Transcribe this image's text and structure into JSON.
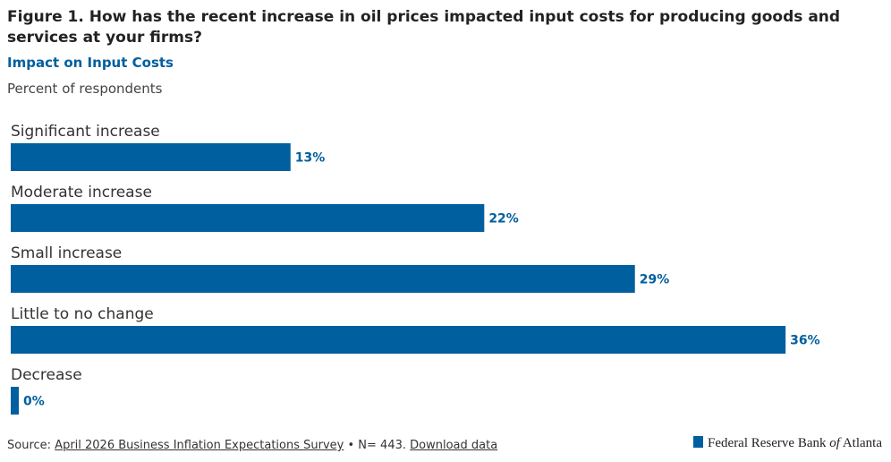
{
  "chart_data": {
    "type": "hbar",
    "title": "Figure 1. How has the recent increase in oil prices impacted input costs for producing goods and services at your firms?",
    "subtitle": "Impact on Input Costs",
    "y_label": "Percent of respondents",
    "categories": [
      "Significant increase",
      "Moderate increase",
      "Small increase",
      "Little to no change",
      "Decrease"
    ],
    "values": [
      13,
      22,
      29,
      36,
      0
    ],
    "value_labels": [
      "13%",
      "22%",
      "29%",
      "36%",
      "0%"
    ],
    "color": "#005f9e"
  },
  "footer": {
    "source_prefix": "Source:",
    "source_link": "April 2026 Business Inflation Expectations Survey",
    "source_note": "• N= 443.",
    "download": "Download data",
    "logo": [
      "Federal Reserve Bank",
      "of",
      "Atlanta"
    ]
  }
}
